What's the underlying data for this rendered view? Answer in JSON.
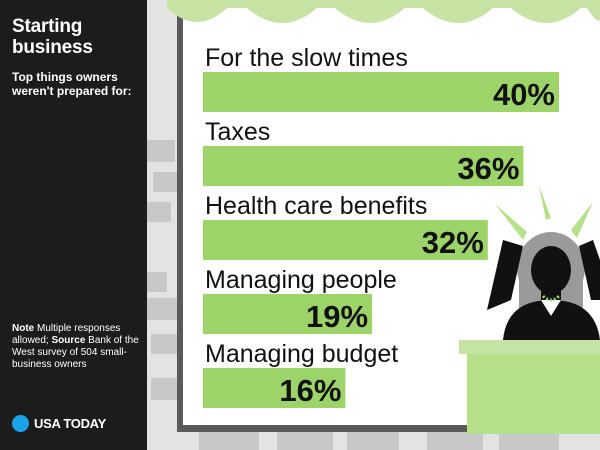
{
  "sidebar": {
    "title": "Starting business",
    "subtitle": "Top things owners weren't prepared for:",
    "note_label": "Note",
    "note_text": "Multiple responses allowed;",
    "source_label": "Source",
    "source_text": "Bank of the West survey of 504 small-business owners",
    "brand": "USA TODAY"
  },
  "colors": {
    "bar": "#9dd46a",
    "awning": "#c6e3a3",
    "sidebar": "#1c1c1c",
    "brick": "#c8c8c8",
    "wall": "#e3e3e3",
    "frame": "#5a5a5a",
    "brand_dot": "#1aa3e8"
  },
  "chart_data": {
    "type": "bar",
    "orientation": "horizontal",
    "categories": [
      "For the slow times",
      "Taxes",
      "Health care benefits",
      "Managing people",
      "Managing budget"
    ],
    "values": [
      40,
      36,
      32,
      19,
      16
    ],
    "value_labels": [
      "40%",
      "36%",
      "32%",
      "19%",
      "16%"
    ],
    "xlim": [
      0,
      40
    ],
    "grid": false,
    "legend": "none"
  }
}
